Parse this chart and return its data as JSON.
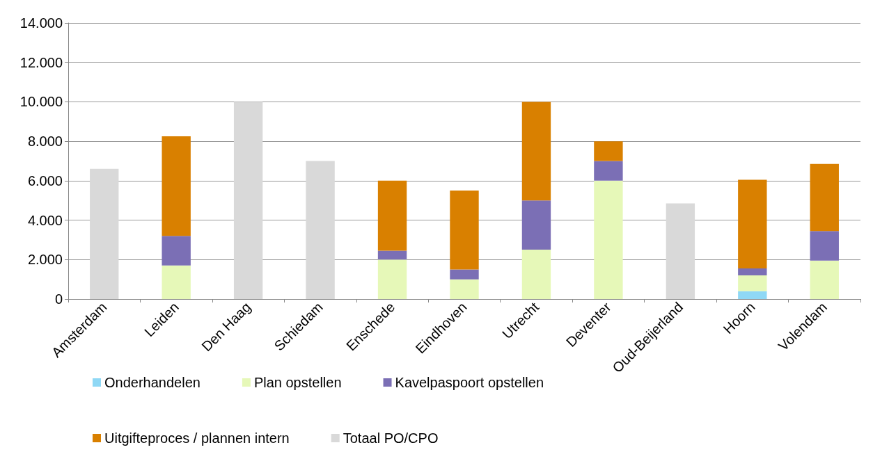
{
  "chart_data": {
    "type": "bar",
    "stacked": true,
    "categories": [
      "Amsterdam",
      "Leiden",
      "Den Haag",
      "Schiedam",
      "Enschede",
      "Eindhoven",
      "Utrecht",
      "Deventer",
      "Oud-Beijerland",
      "Hoorn",
      "Volendam"
    ],
    "series": [
      {
        "name": "Onderhandelen",
        "color": "#8fd8f5",
        "values": [
          null,
          null,
          null,
          null,
          null,
          null,
          null,
          null,
          null,
          400,
          null
        ]
      },
      {
        "name": "Plan opstellen",
        "color": "#e6f8b8",
        "values": [
          null,
          1700,
          null,
          null,
          2000,
          1000,
          2500,
          6000,
          null,
          800,
          1950
        ]
      },
      {
        "name": "Kavelpaspoort opstellen",
        "color": "#7b6fb5",
        "values": [
          null,
          1500,
          null,
          null,
          450,
          500,
          2500,
          1000,
          null,
          350,
          1500
        ]
      },
      {
        "name": "Uitgifteproces / plannen intern",
        "color": "#d98000",
        "values": [
          null,
          5050,
          null,
          null,
          3550,
          4000,
          5000,
          1000,
          null,
          4500,
          3400
        ]
      },
      {
        "name": "Totaal PO/CPO",
        "color": "#d9d9d9",
        "values": [
          6600,
          null,
          10000,
          7000,
          null,
          null,
          null,
          null,
          4850,
          null,
          null
        ]
      }
    ],
    "ylim": [
      0,
      14000
    ],
    "yticks": [
      0,
      {
        "value": 2000,
        "label": "2.000"
      },
      {
        "value": 4000,
        "label": "4.000"
      },
      {
        "value": 6000,
        "label": "6.000"
      },
      {
        "value": 8000,
        "label": "8.000"
      },
      {
        "value": 10000,
        "label": "10.000"
      },
      {
        "value": 12000,
        "label": "12.000"
      },
      {
        "value": 14000,
        "label": "14.000"
      }
    ],
    "grid": "y",
    "legend": "bottom"
  }
}
